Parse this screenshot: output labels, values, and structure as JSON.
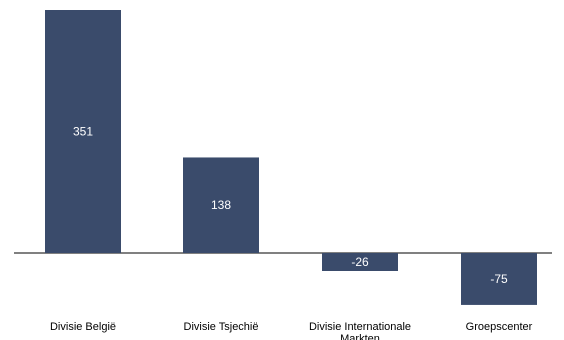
{
  "chart_data": {
    "type": "bar",
    "categories": [
      "Divisie België",
      "Divisie Tsjechië",
      "Divisie Internationale Markten",
      "Groepscenter"
    ],
    "category_lines": [
      [
        "Divisie België"
      ],
      [
        "Divisie Tsjechië"
      ],
      [
        "Divisie Internationale",
        "Markten"
      ],
      [
        "Groepscenter"
      ]
    ],
    "values": [
      351,
      138,
      -26,
      -75
    ],
    "data_labels": [
      "351",
      "138",
      "-26",
      "-75"
    ],
    "ylim": [
      -75,
      351
    ],
    "grid": false,
    "legend": "none",
    "colors": {
      "bar": "#3a4b6b",
      "label": "#ffffff",
      "axis": "#000000",
      "text": "#000000"
    }
  }
}
